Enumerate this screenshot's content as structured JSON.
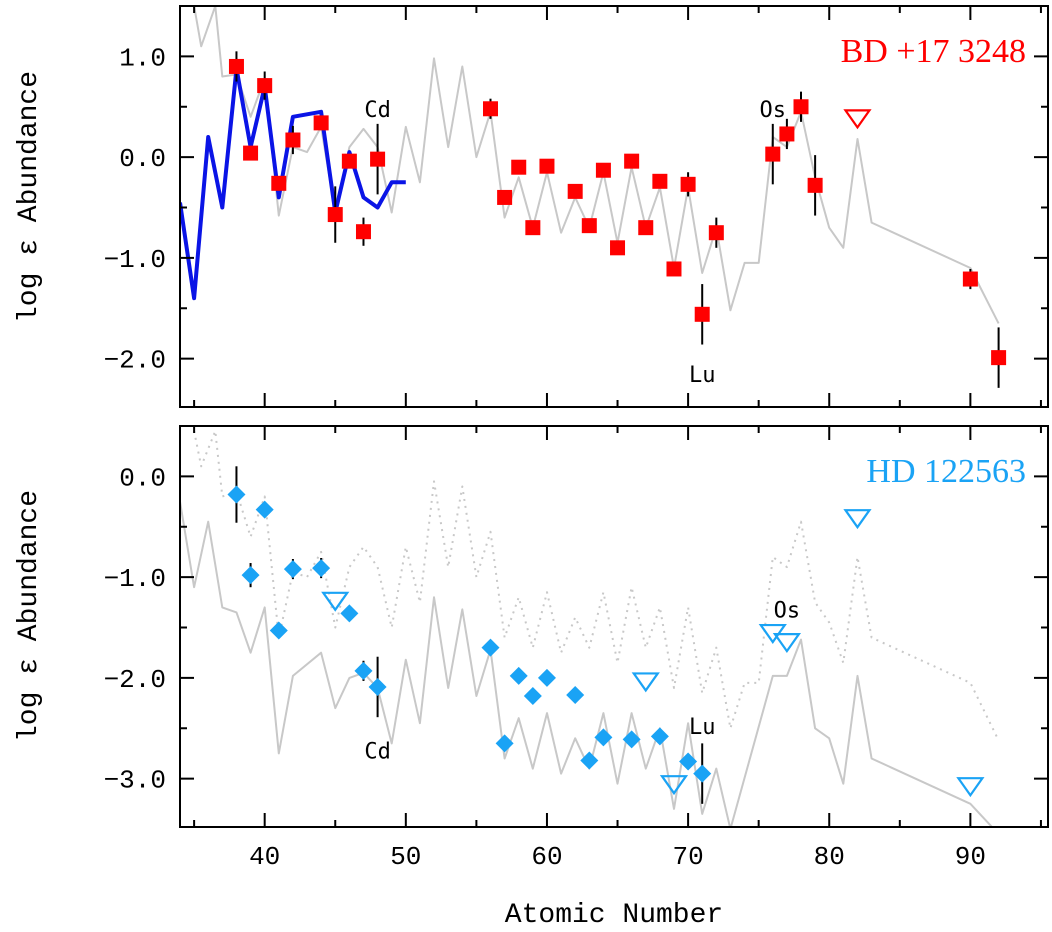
{
  "xlabel": "Atomic Number",
  "colors": {
    "red": "#ff0000",
    "blue": "#0a14e6",
    "cyan": "#1aa3f5",
    "gray": "#c8c8c8",
    "black": "#000000"
  },
  "chart_data": [
    {
      "type": "scatter",
      "star": "BD +17 3248",
      "ylabel": "log ε Abundance",
      "xlim": [
        34,
        95.5
      ],
      "ylim": [
        -2.48,
        1.5
      ],
      "xticks": [
        40,
        50,
        60,
        70,
        80,
        90
      ],
      "yticks": [
        1.0,
        0.0,
        -1.0,
        -2.0
      ],
      "ytick_labels": [
        "1.0",
        "0.0",
        "−1.0",
        "−2.0"
      ],
      "element_labels": [
        {
          "text": "Cd",
          "x": 48,
          "y": 0.48
        },
        {
          "text": "Os",
          "x": 76,
          "y": 0.48
        },
        {
          "text": "Lu",
          "x": 71,
          "y": -2.15
        }
      ],
      "detections": [
        {
          "z": 38,
          "y": 0.9,
          "err": 0.15
        },
        {
          "z": 39,
          "y": 0.04
        },
        {
          "z": 40,
          "y": 0.71,
          "err": 0.14
        },
        {
          "z": 41,
          "y": -0.26
        },
        {
          "z": 42,
          "y": 0.17,
          "err": 0.14
        },
        {
          "z": 44,
          "y": 0.34
        },
        {
          "z": 45,
          "y": -0.57,
          "err": 0.28
        },
        {
          "z": 46,
          "y": -0.04
        },
        {
          "z": 47,
          "y": -0.74,
          "err": 0.14
        },
        {
          "z": 48,
          "y": -0.02,
          "err": 0.35
        },
        {
          "z": 56,
          "y": 0.48,
          "err": 0.1
        },
        {
          "z": 57,
          "y": -0.4
        },
        {
          "z": 58,
          "y": -0.1
        },
        {
          "z": 59,
          "y": -0.7
        },
        {
          "z": 60,
          "y": -0.09
        },
        {
          "z": 62,
          "y": -0.34
        },
        {
          "z": 63,
          "y": -0.68
        },
        {
          "z": 64,
          "y": -0.13
        },
        {
          "z": 65,
          "y": -0.9
        },
        {
          "z": 66,
          "y": -0.04
        },
        {
          "z": 67,
          "y": -0.7
        },
        {
          "z": 68,
          "y": -0.24
        },
        {
          "z": 69,
          "y": -1.11
        },
        {
          "z": 70,
          "y": -0.27,
          "err": 0.12
        },
        {
          "z": 71,
          "y": -1.56,
          "err": 0.3
        },
        {
          "z": 72,
          "y": -0.75,
          "err": 0.15
        },
        {
          "z": 76,
          "y": 0.03,
          "err": 0.3
        },
        {
          "z": 77,
          "y": 0.23,
          "err": 0.15
        },
        {
          "z": 78,
          "y": 0.5,
          "err": 0.15
        },
        {
          "z": 79,
          "y": -0.28,
          "err": 0.3
        },
        {
          "z": 90,
          "y": -1.21,
          "err": 0.1
        },
        {
          "z": 92,
          "y": -1.99,
          "err": 0.3
        }
      ],
      "upper_limits": [
        {
          "z": 82,
          "y": 0.38
        }
      ],
      "blue_curve": [
        [
          34,
          -0.45
        ],
        [
          35,
          -1.4
        ],
        [
          36,
          0.2
        ],
        [
          37,
          -0.5
        ],
        [
          38,
          0.88
        ],
        [
          39,
          0.1
        ],
        [
          40,
          0.7
        ],
        [
          41,
          -0.4
        ],
        [
          42,
          0.4
        ],
        [
          44,
          0.45
        ],
        [
          45,
          -0.55
        ],
        [
          46,
          0.05
        ],
        [
          47,
          -0.4
        ],
        [
          48,
          -0.5
        ],
        [
          49,
          -0.25
        ],
        [
          50,
          -0.25
        ]
      ],
      "gray_curve": [
        [
          35,
          1.5
        ],
        [
          35.5,
          1.1
        ],
        [
          36.5,
          1.5
        ],
        [
          37,
          0.8
        ],
        [
          38,
          0.82
        ],
        [
          39,
          0.4
        ],
        [
          40,
          0.78
        ],
        [
          41,
          -0.58
        ],
        [
          42,
          0.1
        ],
        [
          43,
          0.05
        ],
        [
          44,
          0.3
        ],
        [
          45,
          -0.55
        ],
        [
          46,
          0.1
        ],
        [
          47,
          0.28
        ],
        [
          48,
          0.1
        ],
        [
          49,
          -0.55
        ],
        [
          50,
          0.3
        ],
        [
          51,
          -0.25
        ],
        [
          52,
          0.98
        ],
        [
          53,
          0.1
        ],
        [
          54,
          0.9
        ],
        [
          55,
          0.0
        ],
        [
          56,
          0.45
        ],
        [
          57,
          -0.6
        ],
        [
          58,
          -0.2
        ],
        [
          59,
          -0.7
        ],
        [
          60,
          -0.15
        ],
        [
          61,
          -0.75
        ],
        [
          62,
          -0.4
        ],
        [
          63,
          -0.7
        ],
        [
          64,
          -0.15
        ],
        [
          65,
          -0.85
        ],
        [
          66,
          -0.1
        ],
        [
          67,
          -0.7
        ],
        [
          68,
          -0.3
        ],
        [
          69,
          -1.1
        ],
        [
          70,
          -0.3
        ],
        [
          71,
          -1.15
        ],
        [
          72,
          -0.7
        ],
        [
          73,
          -1.52
        ],
        [
          74,
          -1.05
        ],
        [
          75,
          -1.05
        ],
        [
          76,
          0.2
        ],
        [
          77,
          0.1
        ],
        [
          78,
          0.45
        ],
        [
          79,
          -0.2
        ],
        [
          80,
          -0.7
        ],
        [
          81,
          -0.9
        ],
        [
          82,
          0.18
        ],
        [
          83,
          -0.65
        ],
        [
          90,
          -1.1
        ],
        [
          92,
          -1.65
        ]
      ]
    },
    {
      "type": "scatter",
      "star": "HD 122563",
      "ylabel": "log ε Abundance",
      "xlim": [
        34,
        95.5
      ],
      "ylim": [
        -3.48,
        0.5
      ],
      "xticks": [
        40,
        50,
        60,
        70,
        80,
        90
      ],
      "xtick_labels": [
        "40",
        "50",
        "60",
        "70",
        "80",
        "90"
      ],
      "yticks": [
        0.0,
        -1.0,
        -2.0,
        -3.0
      ],
      "ytick_labels": [
        "0.0",
        "−1.0",
        "−2.0",
        "−3.0"
      ],
      "element_labels": [
        {
          "text": "Os",
          "x": 77,
          "y": -1.32
        },
        {
          "text": "Cd",
          "x": 48,
          "y": -2.72
        },
        {
          "text": "Lu",
          "x": 71,
          "y": -2.48
        }
      ],
      "detections": [
        {
          "z": 38,
          "y": -0.18,
          "err": 0.28
        },
        {
          "z": 39,
          "y": -0.98,
          "err": 0.12
        },
        {
          "z": 40,
          "y": -0.33
        },
        {
          "z": 41,
          "y": -1.53
        },
        {
          "z": 42,
          "y": -0.92,
          "err": 0.1
        },
        {
          "z": 44,
          "y": -0.91,
          "err": 0.1
        },
        {
          "z": 46,
          "y": -1.36
        },
        {
          "z": 47,
          "y": -1.93,
          "err": 0.1
        },
        {
          "z": 48,
          "y": -2.09,
          "err": 0.3
        },
        {
          "z": 56,
          "y": -1.7
        },
        {
          "z": 57,
          "y": -2.65
        },
        {
          "z": 58,
          "y": -1.98
        },
        {
          "z": 59,
          "y": -2.18
        },
        {
          "z": 60,
          "y": -2.0
        },
        {
          "z": 62,
          "y": -2.17
        },
        {
          "z": 63,
          "y": -2.82
        },
        {
          "z": 64,
          "y": -2.59
        },
        {
          "z": 66,
          "y": -2.61
        },
        {
          "z": 68,
          "y": -2.58
        },
        {
          "z": 70,
          "y": -2.83
        },
        {
          "z": 71,
          "y": -2.95,
          "err": 0.3
        }
      ],
      "upper_limits": [
        {
          "z": 45,
          "y": -1.24
        },
        {
          "z": 67,
          "y": -2.04
        },
        {
          "z": 69,
          "y": -3.06
        },
        {
          "z": 76,
          "y": -1.56
        },
        {
          "z": 77,
          "y": -1.65
        },
        {
          "z": 82,
          "y": -0.42
        },
        {
          "z": 90,
          "y": -3.08
        }
      ],
      "gray_solid_curve": [
        [
          34,
          -0.25
        ],
        [
          35,
          -1.1
        ],
        [
          36,
          -0.45
        ],
        [
          37,
          -1.3
        ],
        [
          38,
          -1.35
        ],
        [
          39,
          -1.75
        ],
        [
          40,
          -1.3
        ],
        [
          41,
          -2.75
        ],
        [
          42,
          -1.98
        ],
        [
          44,
          -1.75
        ],
        [
          45,
          -2.3
        ],
        [
          46,
          -2.0
        ],
        [
          47,
          -1.95
        ],
        [
          48,
          -2.1
        ],
        [
          49,
          -2.65
        ],
        [
          50,
          -1.82
        ],
        [
          51,
          -2.45
        ],
        [
          52,
          -1.2
        ],
        [
          53,
          -2.1
        ],
        [
          54,
          -1.32
        ],
        [
          55,
          -2.18
        ],
        [
          56,
          -1.72
        ],
        [
          57,
          -2.8
        ],
        [
          58,
          -2.4
        ],
        [
          59,
          -2.9
        ],
        [
          60,
          -2.35
        ],
        [
          61,
          -2.95
        ],
        [
          62,
          -2.6
        ],
        [
          63,
          -2.9
        ],
        [
          64,
          -2.35
        ],
        [
          65,
          -3.05
        ],
        [
          66,
          -2.35
        ],
        [
          67,
          -2.9
        ],
        [
          68,
          -2.5
        ],
        [
          69,
          -3.3
        ],
        [
          70,
          -2.45
        ],
        [
          71,
          -3.35
        ],
        [
          72,
          -2.9
        ],
        [
          73,
          -3.5
        ],
        [
          76,
          -1.98
        ],
        [
          77,
          -1.98
        ],
        [
          78,
          -1.62
        ],
        [
          79,
          -2.5
        ],
        [
          80,
          -2.6
        ],
        [
          81,
          -3.05
        ],
        [
          82,
          -1.98
        ],
        [
          83,
          -2.8
        ],
        [
          90,
          -3.25
        ],
        [
          92,
          -3.55
        ]
      ],
      "gray_dotted_curve": [
        [
          35,
          0.45
        ],
        [
          35.5,
          0.1
        ],
        [
          36.5,
          0.45
        ],
        [
          37,
          -0.2
        ],
        [
          38,
          -0.15
        ],
        [
          39,
          -0.6
        ],
        [
          40,
          -0.2
        ],
        [
          41,
          -1.6
        ],
        [
          42,
          -0.95
        ],
        [
          43,
          -1.0
        ],
        [
          44,
          -0.75
        ],
        [
          45,
          -1.5
        ],
        [
          46,
          -0.9
        ],
        [
          47,
          -0.7
        ],
        [
          48,
          -0.9
        ],
        [
          49,
          -1.5
        ],
        [
          50,
          -0.7
        ],
        [
          51,
          -1.25
        ],
        [
          52,
          -0.05
        ],
        [
          53,
          -0.9
        ],
        [
          54,
          -0.1
        ],
        [
          55,
          -1.0
        ],
        [
          56,
          -0.55
        ],
        [
          57,
          -1.6
        ],
        [
          58,
          -1.2
        ],
        [
          59,
          -1.7
        ],
        [
          60,
          -1.15
        ],
        [
          61,
          -1.75
        ],
        [
          62,
          -1.4
        ],
        [
          63,
          -1.7
        ],
        [
          64,
          -1.15
        ],
        [
          65,
          -1.85
        ],
        [
          66,
          -1.1
        ],
        [
          67,
          -1.7
        ],
        [
          68,
          -1.3
        ],
        [
          69,
          -2.1
        ],
        [
          70,
          -1.3
        ],
        [
          71,
          -2.15
        ],
        [
          72,
          -1.7
        ],
        [
          73,
          -2.5
        ],
        [
          74,
          -2.05
        ],
        [
          75,
          -2.05
        ],
        [
          76,
          -0.8
        ],
        [
          77,
          -0.9
        ],
        [
          78,
          -0.45
        ],
        [
          79,
          -1.25
        ],
        [
          80,
          -1.45
        ],
        [
          81,
          -1.85
        ],
        [
          82,
          -0.8
        ],
        [
          83,
          -1.6
        ],
        [
          90,
          -2.05
        ],
        [
          92,
          -2.62
        ]
      ]
    }
  ]
}
